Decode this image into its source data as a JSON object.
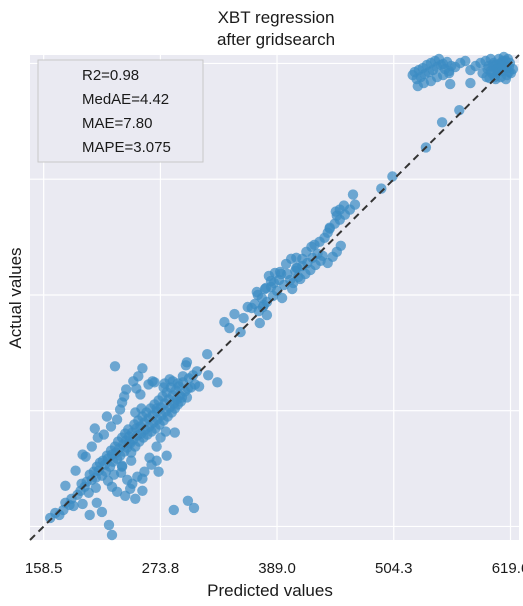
{
  "chart_data": {
    "type": "scatter",
    "title_lines": [
      "XBT regression",
      "after gridsearch"
    ],
    "xlabel": "Predicted values",
    "ylabel": "Actual values",
    "xticks": [
      "158.5",
      "273.8",
      "389.0",
      "504.3",
      "619.6"
    ],
    "xlim": [
      145,
      628
    ],
    "ylim": [
      145,
      628
    ],
    "grid": true,
    "metrics": [
      "R2=0.98",
      "MedAE=4.42",
      "MAE=7.80",
      "MAPE=3.075"
    ],
    "metrics_placement": "top-left",
    "reference_line": {
      "style": "dashed",
      "from": [
        145,
        145
      ],
      "to": [
        628,
        628
      ]
    },
    "point_color": "#3b8cc4",
    "line_color": "#333333",
    "background_color": "#eaeaf2",
    "points": [
      [
        165,
        167
      ],
      [
        170,
        172
      ],
      [
        174,
        170
      ],
      [
        178,
        175
      ],
      [
        180,
        182
      ],
      [
        184,
        180
      ],
      [
        186,
        186
      ],
      [
        188,
        179
      ],
      [
        192,
        190
      ],
      [
        195,
        194
      ],
      [
        196,
        201
      ],
      [
        199,
        198
      ],
      [
        201,
        203
      ],
      [
        203,
        192
      ],
      [
        204,
        210
      ],
      [
        206,
        205
      ],
      [
        208,
        213
      ],
      [
        210,
        207
      ],
      [
        211,
        218
      ],
      [
        213,
        214
      ],
      [
        214,
        222
      ],
      [
        216,
        209
      ],
      [
        217,
        224
      ],
      [
        219,
        220
      ],
      [
        220,
        213
      ],
      [
        221,
        229
      ],
      [
        222,
        226
      ],
      [
        224,
        218
      ],
      [
        225,
        234
      ],
      [
        226,
        230
      ],
      [
        227,
        223
      ],
      [
        229,
        238
      ],
      [
        230,
        232
      ],
      [
        231,
        226
      ],
      [
        232,
        243
      ],
      [
        233,
        236
      ],
      [
        234,
        229
      ],
      [
        236,
        247
      ],
      [
        237,
        240
      ],
      [
        238,
        233
      ],
      [
        239,
        251
      ],
      [
        240,
        244
      ],
      [
        241,
        237
      ],
      [
        242,
        255
      ],
      [
        243,
        248
      ],
      [
        244,
        241
      ],
      [
        245,
        232
      ],
      [
        246,
        252
      ],
      [
        247,
        245
      ],
      [
        248,
        260
      ],
      [
        249,
        238
      ],
      [
        250,
        256
      ],
      [
        251,
        249
      ],
      [
        252,
        264
      ],
      [
        253,
        243
      ],
      [
        254,
        258
      ],
      [
        255,
        251
      ],
      [
        256,
        268
      ],
      [
        257,
        247
      ],
      [
        258,
        262
      ],
      [
        259,
        255
      ],
      [
        260,
        272
      ],
      [
        261,
        250
      ],
      [
        262,
        266
      ],
      [
        263,
        258
      ],
      [
        264,
        276
      ],
      [
        265,
        253
      ],
      [
        266,
        269
      ],
      [
        267,
        262
      ],
      [
        268,
        280
      ],
      [
        269,
        256
      ],
      [
        270,
        273
      ],
      [
        271,
        265
      ],
      [
        272,
        284
      ],
      [
        273,
        260
      ],
      [
        274,
        277
      ],
      [
        275,
        269
      ],
      [
        276,
        288
      ],
      [
        277,
        264
      ],
      [
        278,
        281
      ],
      [
        279,
        273
      ],
      [
        280,
        292
      ],
      [
        281,
        268
      ],
      [
        282,
        285
      ],
      [
        283,
        277
      ],
      [
        284,
        297
      ],
      [
        285,
        272
      ],
      [
        286,
        289
      ],
      [
        287,
        281
      ],
      [
        288,
        276
      ],
      [
        289,
        294
      ],
      [
        290,
        285
      ],
      [
        291,
        280
      ],
      [
        292,
        298
      ],
      [
        293,
        289
      ],
      [
        294,
        283
      ],
      [
        296,
        302
      ],
      [
        298,
        293
      ],
      [
        300,
        287
      ],
      [
        302,
        306
      ],
      [
        304,
        297
      ],
      [
        306,
        309
      ],
      [
        308,
        300
      ],
      [
        310,
        313
      ],
      [
        218,
        250
      ],
      [
        225,
        258
      ],
      [
        231,
        265
      ],
      [
        234,
        275
      ],
      [
        236,
        282
      ],
      [
        238,
        288
      ],
      [
        240,
        295
      ],
      [
        247,
        303
      ],
      [
        252,
        308
      ],
      [
        256,
        316
      ],
      [
        250,
        296
      ],
      [
        254,
        290
      ],
      [
        262,
        300
      ],
      [
        268,
        302
      ],
      [
        278,
        301
      ],
      [
        286,
        303
      ],
      [
        212,
        247
      ],
      [
        206,
        238
      ],
      [
        200,
        228
      ],
      [
        190,
        214
      ],
      [
        180,
        199
      ],
      [
        197,
        230
      ],
      [
        209,
        256
      ],
      [
        221,
        268
      ],
      [
        241,
        205
      ],
      [
        246,
        201
      ],
      [
        251,
        208
      ],
      [
        258,
        213
      ],
      [
        265,
        220
      ],
      [
        270,
        224
      ],
      [
        280,
        229
      ],
      [
        272,
        213
      ],
      [
        244,
        196
      ],
      [
        239,
        189
      ],
      [
        231,
        193
      ],
      [
        226,
        198
      ],
      [
        249,
        186
      ],
      [
        256,
        194
      ],
      [
        287,
        175
      ],
      [
        307,
        177
      ],
      [
        197,
        181
      ],
      [
        210,
        197
      ],
      [
        222,
        204
      ],
      [
        235,
        212
      ],
      [
        204,
        170
      ],
      [
        211,
        182
      ],
      [
        216,
        173
      ],
      [
        228,
        210
      ],
      [
        296,
        308
      ],
      [
        299,
        319
      ],
      [
        300,
        322
      ],
      [
        312,
        298
      ],
      [
        321,
        309
      ],
      [
        330,
        302
      ],
      [
        229,
        318
      ],
      [
        266,
        303
      ],
      [
        283,
        305
      ],
      [
        291,
        301
      ],
      [
        301,
        296
      ],
      [
        277,
        297
      ],
      [
        295,
        287
      ],
      [
        226,
        150
      ],
      [
        256,
        206
      ],
      [
        263,
        227
      ],
      [
        270,
        238
      ],
      [
        274,
        247
      ],
      [
        279,
        253
      ],
      [
        245,
        224
      ],
      [
        236,
        219
      ],
      [
        337,
        362
      ],
      [
        342,
        356
      ],
      [
        347,
        370
      ],
      [
        356,
        366
      ],
      [
        360,
        377
      ],
      [
        364,
        376
      ],
      [
        367,
        380
      ],
      [
        369,
        392
      ],
      [
        374,
        386
      ],
      [
        377,
        395
      ],
      [
        379,
        382
      ],
      [
        383,
        397
      ],
      [
        386,
        401
      ],
      [
        389,
        393
      ],
      [
        391,
        404
      ],
      [
        394,
        386
      ],
      [
        396,
        399
      ],
      [
        399,
        410
      ],
      [
        402,
        404
      ],
      [
        404,
        395
      ],
      [
        407,
        413
      ],
      [
        409,
        416
      ],
      [
        412,
        405
      ],
      [
        414,
        418
      ],
      [
        417,
        410
      ],
      [
        419,
        421
      ],
      [
        422,
        414
      ],
      [
        424,
        426
      ],
      [
        427,
        419
      ],
      [
        429,
        430
      ],
      [
        432,
        423
      ],
      [
        434,
        428
      ],
      [
        381,
        408
      ],
      [
        387,
        411
      ],
      [
        392,
        412
      ],
      [
        398,
        420
      ],
      [
        403,
        425
      ],
      [
        408,
        416
      ],
      [
        370,
        389
      ],
      [
        375,
        377
      ],
      [
        414,
        425
      ],
      [
        418,
        432
      ],
      [
        423,
        437
      ],
      [
        426,
        439
      ],
      [
        431,
        442
      ],
      [
        436,
        446
      ],
      [
        439,
        451
      ],
      [
        441,
        456
      ],
      [
        446,
        460
      ],
      [
        451,
        464
      ],
      [
        456,
        469
      ],
      [
        461,
        474
      ],
      [
        466,
        479
      ],
      [
        378,
        396
      ],
      [
        383,
        403
      ],
      [
        371,
        373
      ],
      [
        376,
        379
      ],
      [
        385,
        388
      ],
      [
        393,
        410
      ],
      [
        405,
        401
      ],
      [
        410,
        407
      ],
      [
        439,
        421
      ],
      [
        444,
        427
      ],
      [
        448,
        432
      ],
      [
        452,
        438
      ],
      [
        447,
        472
      ],
      [
        451,
        474
      ],
      [
        455,
        478
      ],
      [
        448,
        468
      ],
      [
        523,
        608
      ],
      [
        525,
        611
      ],
      [
        527,
        604
      ],
      [
        529,
        613
      ],
      [
        531,
        606
      ],
      [
        533,
        615
      ],
      [
        535,
        609
      ],
      [
        537,
        618
      ],
      [
        539,
        611
      ],
      [
        541,
        620
      ],
      [
        543,
        613
      ],
      [
        545,
        622
      ],
      [
        547,
        616
      ],
      [
        549,
        624
      ],
      [
        551,
        618
      ],
      [
        553,
        619
      ],
      [
        555,
        614
      ],
      [
        557,
        621
      ],
      [
        559,
        610
      ],
      [
        561,
        617
      ],
      [
        528,
        597
      ],
      [
        534,
        600
      ],
      [
        541,
        602
      ],
      [
        547,
        606
      ],
      [
        553,
        608
      ],
      [
        559,
        612
      ],
      [
        565,
        616
      ],
      [
        570,
        620
      ],
      [
        575,
        622
      ],
      [
        580,
        613
      ],
      [
        585,
        617
      ],
      [
        590,
        620
      ],
      [
        595,
        622
      ],
      [
        600,
        624
      ],
      [
        605,
        618
      ],
      [
        610,
        620
      ],
      [
        615,
        622
      ],
      [
        619,
        620
      ],
      [
        612,
        616
      ],
      [
        607,
        612
      ],
      [
        604,
        606
      ],
      [
        601,
        610
      ],
      [
        597,
        614
      ],
      [
        603,
        620
      ],
      [
        608,
        624
      ],
      [
        613,
        626
      ],
      [
        617,
        624
      ],
      [
        600,
        612
      ],
      [
        602,
        618
      ],
      [
        607,
        610
      ],
      [
        609,
        615
      ],
      [
        611,
        612
      ],
      [
        614,
        618
      ],
      [
        616,
        608
      ],
      [
        618,
        611
      ],
      [
        605,
        604
      ],
      [
        610,
        606
      ],
      [
        615,
        604
      ],
      [
        620,
        610
      ],
      [
        622,
        614
      ],
      [
        618,
        616
      ],
      [
        612,
        622
      ],
      [
        608,
        618
      ],
      [
        592,
        610
      ],
      [
        596,
        606
      ],
      [
        599,
        605
      ],
      [
        606,
        614
      ],
      [
        611,
        617
      ],
      [
        616,
        615
      ],
      [
        598,
        617
      ]
    ],
    "outliers": [
      [
        223,
        160
      ],
      [
        236,
        218
      ],
      [
        243,
        242
      ],
      [
        249,
        272
      ],
      [
        255,
        276
      ],
      [
        270,
        276
      ],
      [
        288,
        252
      ],
      [
        301,
        184
      ],
      [
        320,
        330
      ],
      [
        353,
        352
      ],
      [
        372,
        361
      ],
      [
        379,
        369
      ],
      [
        408,
        426
      ],
      [
        441,
        455
      ],
      [
        464,
        489
      ],
      [
        492,
        495
      ],
      [
        503,
        507
      ],
      [
        536,
        536
      ],
      [
        552,
        561
      ],
      [
        569,
        573
      ],
      [
        560,
        599
      ],
      [
        580,
        600
      ]
    ]
  }
}
